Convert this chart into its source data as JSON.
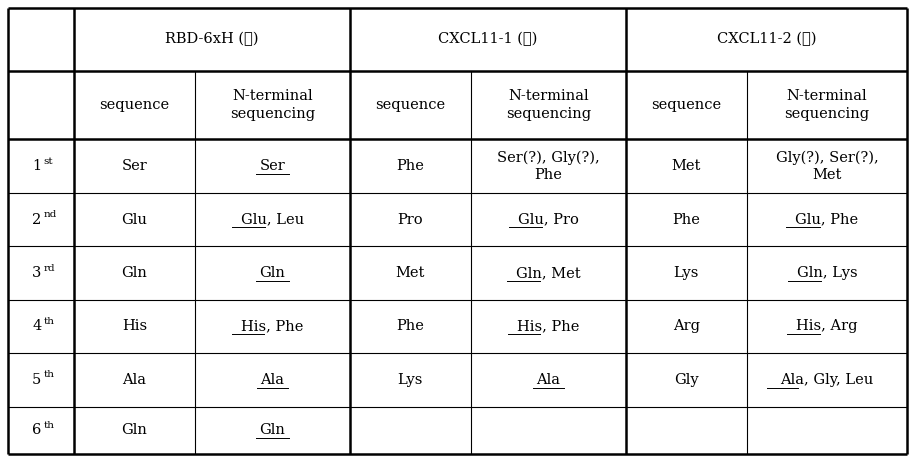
{
  "col_group_headers": [
    "RBD-6xH (①)",
    "CXCL11-1 (②)",
    "CXCL11-2 (③)"
  ],
  "sub_headers": [
    "sequence",
    "N-terminal\nsequencing"
  ],
  "row_bases": [
    "1",
    "2",
    "3",
    "4",
    "5",
    "6"
  ],
  "row_sups": [
    "st",
    "nd",
    "rd",
    "th",
    "th",
    "th"
  ],
  "data": [
    [
      "Ser",
      "Ser",
      "Phe",
      "Ser(?), Gly(?),\nPhe",
      "Met",
      "Gly(?), Ser(?),\nMet"
    ],
    [
      "Glu",
      "Glu, Leu",
      "Pro",
      "Glu, Pro",
      "Phe",
      "Glu, Phe"
    ],
    [
      "Gln",
      "Gln",
      "Met",
      "Gln, Met",
      "Lys",
      "Gln, Lys"
    ],
    [
      "His",
      "His, Phe",
      "Phe",
      "His, Phe",
      "Arg",
      "His, Arg"
    ],
    [
      "Ala",
      "Ala",
      "Lys",
      "Ala",
      "Gly",
      "Ala, Gly, Leu"
    ],
    [
      "Gln",
      "Gln",
      "",
      "",
      "",
      ""
    ]
  ],
  "underline_info": {
    "0_1": "Ser",
    "1_1": "Glu",
    "2_1": "Gln",
    "3_1": "His",
    "4_1": "Ala",
    "5_1": "Gln",
    "1_3": "Glu",
    "2_3": "Gln",
    "3_3": "His",
    "4_3": "Ala",
    "1_5": "Glu",
    "2_5": "Gln",
    "3_5": "His",
    "4_5": "Ala"
  },
  "bg_color": "#ffffff",
  "line_color": "#000000",
  "font_size": 10.5,
  "sup_font_size": 7.5
}
